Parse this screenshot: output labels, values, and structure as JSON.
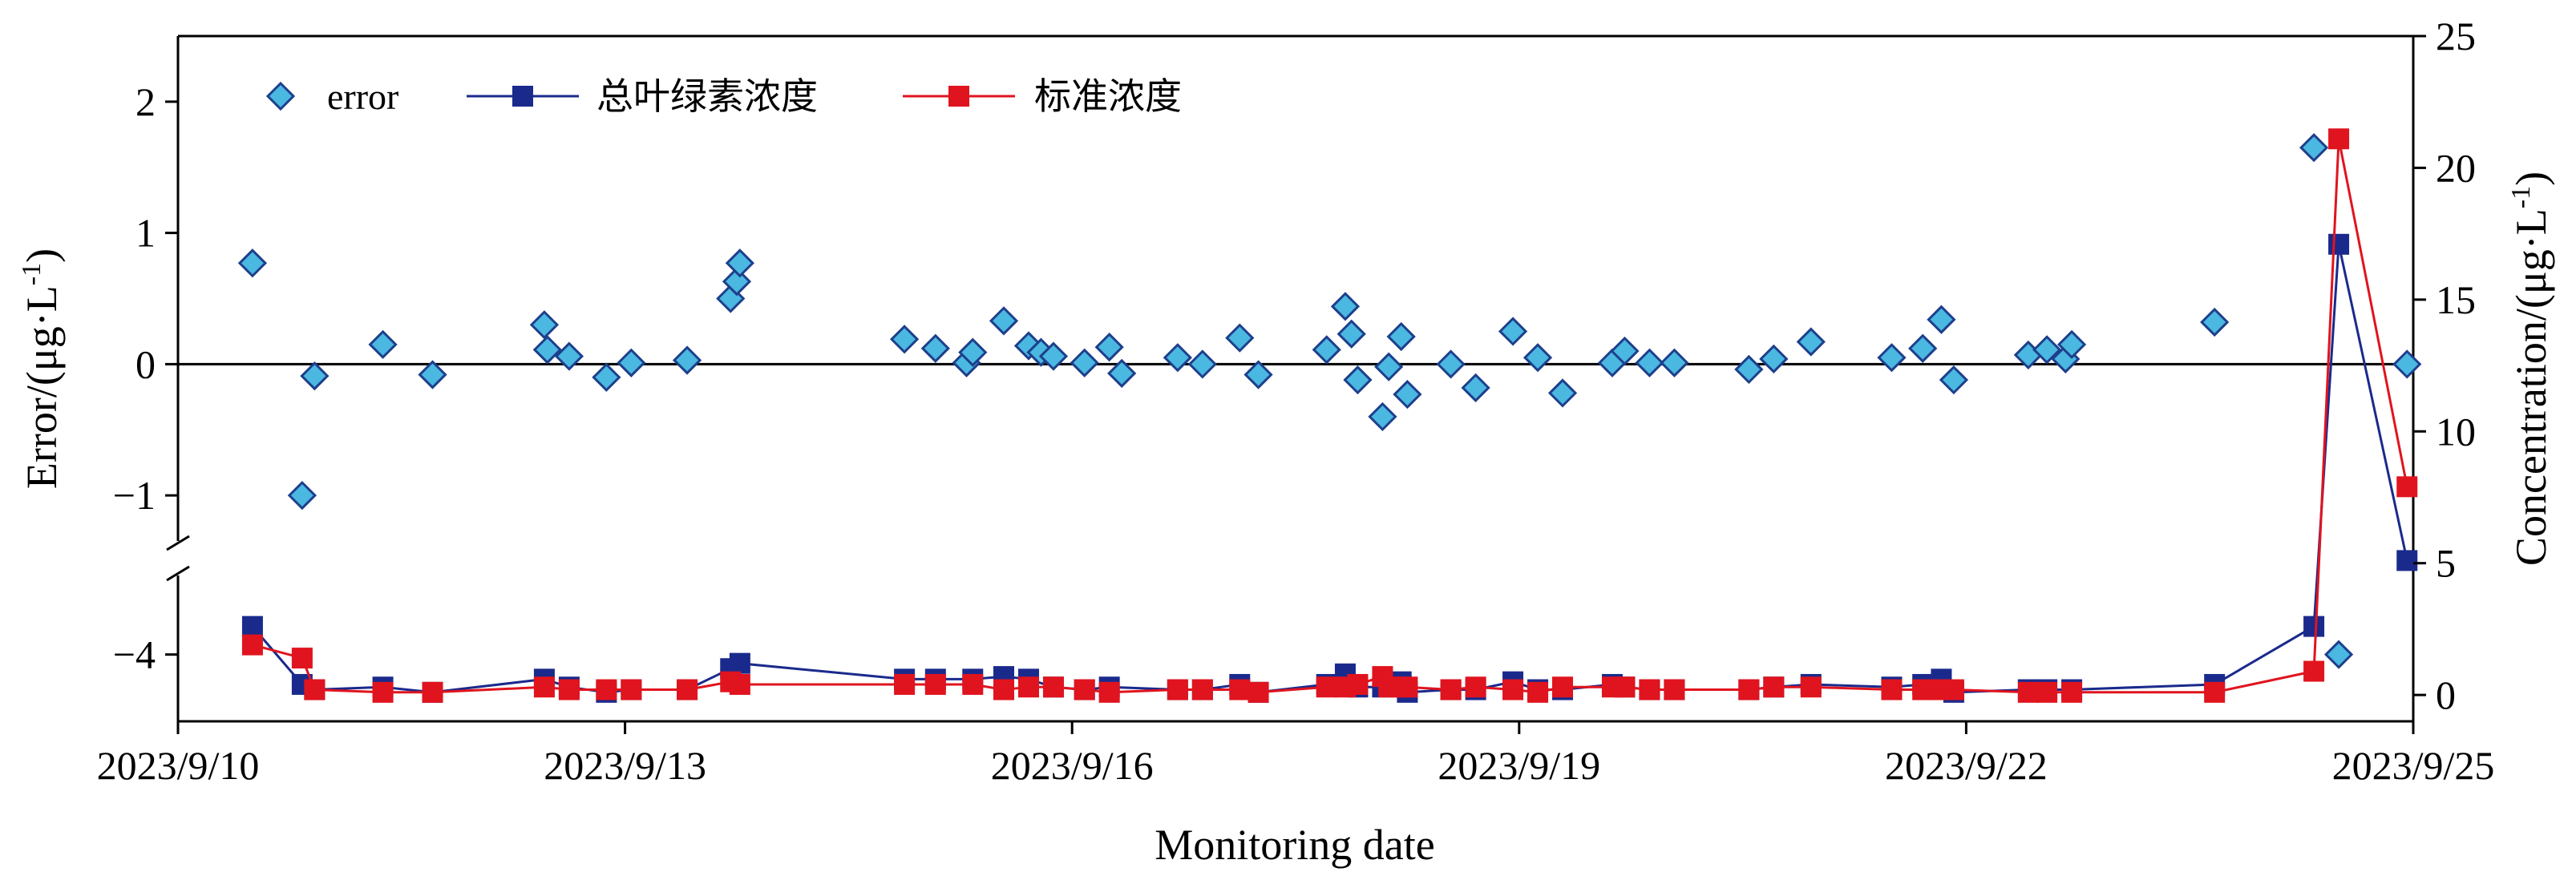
{
  "chart_data": {
    "type": "line",
    "xlabel": "Monitoring date",
    "ylabel_left": "Error/(μg·L",
    "ylabel_left_exp": "-1",
    "ylabel_left_close": ")",
    "ylabel_right": "Concentration/(μg·L",
    "ylabel_right_exp": "-1",
    "ylabel_right_close": ")",
    "x_ticks": [
      "2023/9/10",
      "2023/9/13",
      "2023/9/16",
      "2023/9/19",
      "2023/9/22",
      "2023/9/25"
    ],
    "x_range": [
      "2023/9/10",
      "2023/9/25"
    ],
    "y_left_ticks_upper": [
      "−1",
      "0",
      "1",
      "2"
    ],
    "y_left_tick_lower": "−4",
    "y_left_range_upper": [
      -1.5,
      2.5
    ],
    "y_left_range_lower": [
      -4.5,
      -3.3
    ],
    "y_left_break": true,
    "y_right_ticks": [
      "0",
      "5",
      "10",
      "15",
      "20",
      "25"
    ],
    "y_right_range": [
      -1,
      25
    ],
    "reference_line": 0,
    "legend": [
      "error",
      "总叶绿素浓度",
      "标准浓度"
    ],
    "legend_position": "top-left",
    "colors": {
      "error_fill": "#4ab8e0",
      "error_edge": "#1e3f8c",
      "total_chl": "#1a2a8c",
      "standard": "#e0141e"
    },
    "series": [
      {
        "name": "error",
        "axis": "left",
        "marker": "diamond",
        "x": [
          "2023/9/10 12:00",
          "2023/9/10 20:00",
          "2023/9/10 22:00",
          "2023/9/11 9:00",
          "2023/9/11 17:00",
          "2023/9/12 11:00",
          "2023/9/12 11:30",
          "2023/9/12 15:00",
          "2023/9/12 21:00",
          "2023/9/13 1:00",
          "2023/9/13 10:00",
          "2023/9/13 17:00",
          "2023/9/13 18:00",
          "2023/9/13 18:30",
          "2023/9/14 21:00",
          "2023/9/15 2:00",
          "2023/9/15 7:00",
          "2023/9/15 8:00",
          "2023/9/15 13:00",
          "2023/9/15 17:00",
          "2023/9/15 19:00",
          "2023/9/15 21:00",
          "2023/9/16 2:00",
          "2023/9/16 6:00",
          "2023/9/16 8:00",
          "2023/9/16 17:00",
          "2023/9/16 21:00",
          "2023/9/17 3:00",
          "2023/9/17 6:00",
          "2023/9/17 17:00",
          "2023/9/17 20:00",
          "2023/9/17 21:00",
          "2023/9/17 22:00",
          "2023/9/18 2:00",
          "2023/9/18 3:00",
          "2023/9/18 5:00",
          "2023/9/18 6:00",
          "2023/9/18 13:00",
          "2023/9/18 17:00",
          "2023/9/18 23:00",
          "2023/9/19 3:00",
          "2023/9/19 7:00",
          "2023/9/19 15:00",
          "2023/9/19 17:00",
          "2023/9/19 21:00",
          "2023/9/20 1:00",
          "2023/9/20 13:00",
          "2023/9/20 17:00",
          "2023/9/20 23:00",
          "2023/9/21 12:00",
          "2023/9/21 17:00",
          "2023/9/21 20:00",
          "2023/9/21 22:00",
          "2023/9/22 10:00",
          "2023/9/22 13:00",
          "2023/9/22 16:00",
          "2023/9/22 17:00",
          "2023/9/23 16:00",
          "2023/9/24 8:00",
          "2023/9/24 12:00",
          "2023/9/24 23:00"
        ],
        "y": [
          0.77,
          -1.0,
          -0.09,
          0.15,
          -0.08,
          0.3,
          0.11,
          0.06,
          -0.1,
          0.01,
          0.03,
          0.5,
          0.63,
          0.77,
          0.19,
          0.12,
          0.01,
          0.09,
          0.33,
          0.14,
          0.09,
          0.06,
          0.01,
          0.13,
          -0.07,
          0.05,
          0.0,
          0.2,
          -0.08,
          0.11,
          0.44,
          0.23,
          -0.12,
          -0.4,
          -0.02,
          0.21,
          -0.23,
          0.0,
          -0.18,
          0.25,
          0.05,
          -0.22,
          0.01,
          0.1,
          0.01,
          0.01,
          -0.04,
          0.04,
          0.17,
          0.05,
          0.12,
          0.34,
          -0.12,
          0.07,
          0.11,
          0.04,
          0.15,
          0.32,
          1.65,
          -4.0,
          0.0
        ]
      },
      {
        "name": "总叶绿素浓度",
        "axis": "right",
        "marker": "square",
        "x": [
          "2023/9/10 12:00",
          "2023/9/10 20:00",
          "2023/9/10 22:00",
          "2023/9/11 9:00",
          "2023/9/11 17:00",
          "2023/9/12 11:00",
          "2023/9/12 15:00",
          "2023/9/12 21:00",
          "2023/9/13 1:00",
          "2023/9/13 10:00",
          "2023/9/13 17:00",
          "2023/9/13 18:30",
          "2023/9/14 21:00",
          "2023/9/15 2:00",
          "2023/9/15 8:00",
          "2023/9/15 13:00",
          "2023/9/15 17:00",
          "2023/9/15 21:00",
          "2023/9/16 2:00",
          "2023/9/16 6:00",
          "2023/9/16 17:00",
          "2023/9/16 21:00",
          "2023/9/17 3:00",
          "2023/9/17 6:00",
          "2023/9/17 17:00",
          "2023/9/17 20:00",
          "2023/9/17 22:00",
          "2023/9/18 2:00",
          "2023/9/18 3:00",
          "2023/9/18 5:00",
          "2023/9/18 6:00",
          "2023/9/18 13:00",
          "2023/9/18 17:00",
          "2023/9/18 23:00",
          "2023/9/19 3:00",
          "2023/9/19 7:00",
          "2023/9/19 15:00",
          "2023/9/19 17:00",
          "2023/9/19 21:00",
          "2023/9/20 1:00",
          "2023/9/20 13:00",
          "2023/9/20 17:00",
          "2023/9/20 23:00",
          "2023/9/21 12:00",
          "2023/9/21 17:00",
          "2023/9/21 20:00",
          "2023/9/21 22:00",
          "2023/9/22 10:00",
          "2023/9/22 13:00",
          "2023/9/22 17:00",
          "2023/9/23 16:00",
          "2023/9/24 8:00",
          "2023/9/24 12:00",
          "2023/9/24 23:00"
        ],
        "y": [
          2.6,
          0.4,
          0.2,
          0.3,
          0.1,
          0.6,
          0.3,
          0.1,
          0.2,
          0.2,
          1.0,
          1.2,
          0.6,
          0.6,
          0.6,
          0.7,
          0.6,
          0.3,
          0.2,
          0.3,
          0.2,
          0.2,
          0.4,
          0.1,
          0.4,
          0.8,
          0.3,
          0.3,
          0.4,
          0.5,
          0.1,
          0.2,
          0.2,
          0.5,
          0.2,
          0.2,
          0.4,
          0.3,
          0.2,
          0.2,
          0.2,
          0.3,
          0.4,
          0.3,
          0.4,
          0.6,
          0.1,
          0.2,
          0.2,
          0.2,
          0.4,
          2.6,
          17.1,
          5.1
        ]
      },
      {
        "name": "标准浓度",
        "axis": "right",
        "marker": "square",
        "x": [
          "2023/9/10 12:00",
          "2023/9/10 20:00",
          "2023/9/10 22:00",
          "2023/9/11 9:00",
          "2023/9/11 17:00",
          "2023/9/12 11:00",
          "2023/9/12 15:00",
          "2023/9/12 21:00",
          "2023/9/13 1:00",
          "2023/9/13 10:00",
          "2023/9/13 17:00",
          "2023/9/13 18:30",
          "2023/9/14 21:00",
          "2023/9/15 2:00",
          "2023/9/15 8:00",
          "2023/9/15 13:00",
          "2023/9/15 17:00",
          "2023/9/15 21:00",
          "2023/9/16 2:00",
          "2023/9/16 6:00",
          "2023/9/16 17:00",
          "2023/9/16 21:00",
          "2023/9/17 3:00",
          "2023/9/17 6:00",
          "2023/9/17 17:00",
          "2023/9/17 20:00",
          "2023/9/17 22:00",
          "2023/9/18 2:00",
          "2023/9/18 3:00",
          "2023/9/18 5:00",
          "2023/9/18 6:00",
          "2023/9/18 13:00",
          "2023/9/18 17:00",
          "2023/9/18 23:00",
          "2023/9/19 3:00",
          "2023/9/19 7:00",
          "2023/9/19 15:00",
          "2023/9/19 17:00",
          "2023/9/19 21:00",
          "2023/9/20 1:00",
          "2023/9/20 13:00",
          "2023/9/20 17:00",
          "2023/9/20 23:00",
          "2023/9/21 12:00",
          "2023/9/21 17:00",
          "2023/9/21 20:00",
          "2023/9/21 22:00",
          "2023/9/22 10:00",
          "2023/9/22 13:00",
          "2023/9/22 17:00",
          "2023/9/23 16:00",
          "2023/9/24 8:00",
          "2023/9/24 12:00",
          "2023/9/24 23:00"
        ],
        "y": [
          1.9,
          1.4,
          0.2,
          0.1,
          0.1,
          0.3,
          0.2,
          0.2,
          0.2,
          0.2,
          0.5,
          0.4,
          0.4,
          0.4,
          0.4,
          0.2,
          0.3,
          0.3,
          0.2,
          0.1,
          0.2,
          0.2,
          0.2,
          0.1,
          0.3,
          0.3,
          0.4,
          0.7,
          0.3,
          0.3,
          0.3,
          0.2,
          0.3,
          0.2,
          0.1,
          0.3,
          0.3,
          0.3,
          0.2,
          0.2,
          0.2,
          0.3,
          0.3,
          0.2,
          0.2,
          0.2,
          0.2,
          0.1,
          0.1,
          0.1,
          0.1,
          0.9,
          21.1,
          7.9
        ]
      }
    ]
  }
}
